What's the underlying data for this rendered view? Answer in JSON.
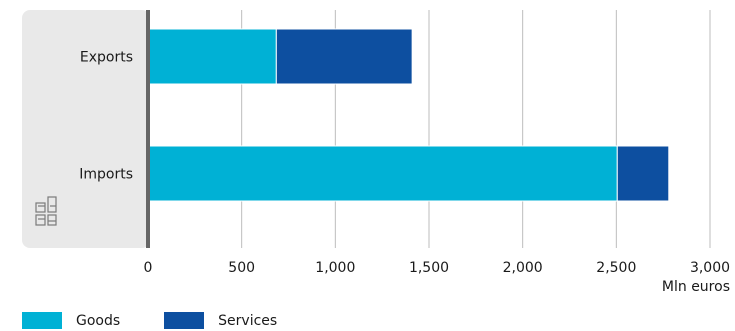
{
  "chart_data": {
    "type": "bar",
    "orientation": "horizontal",
    "stacked": true,
    "categories": [
      "Exports",
      "Imports"
    ],
    "series": [
      {
        "name": "Goods",
        "values": [
          685,
          2505
        ],
        "color": "#00b1d5"
      },
      {
        "name": "Services",
        "values": [
          725,
          275
        ],
        "color": "#0d4fa0"
      }
    ],
    "xlim": [
      0,
      3000
    ],
    "ticks": [
      0,
      500,
      1000,
      1500,
      2000,
      2500,
      3000
    ],
    "tick_labels": [
      "0",
      "500",
      "1,000",
      "1,500",
      "2,000",
      "2,500",
      "3,000"
    ],
    "xlabel": "Mln euros",
    "grid": true,
    "legend_position": "bottom"
  },
  "logo": {
    "name": "cbs-logo",
    "text": "cbs"
  },
  "colors": {
    "panel": "#e9e9e9",
    "axis": "#666666",
    "grid": "#bdbdbd"
  }
}
